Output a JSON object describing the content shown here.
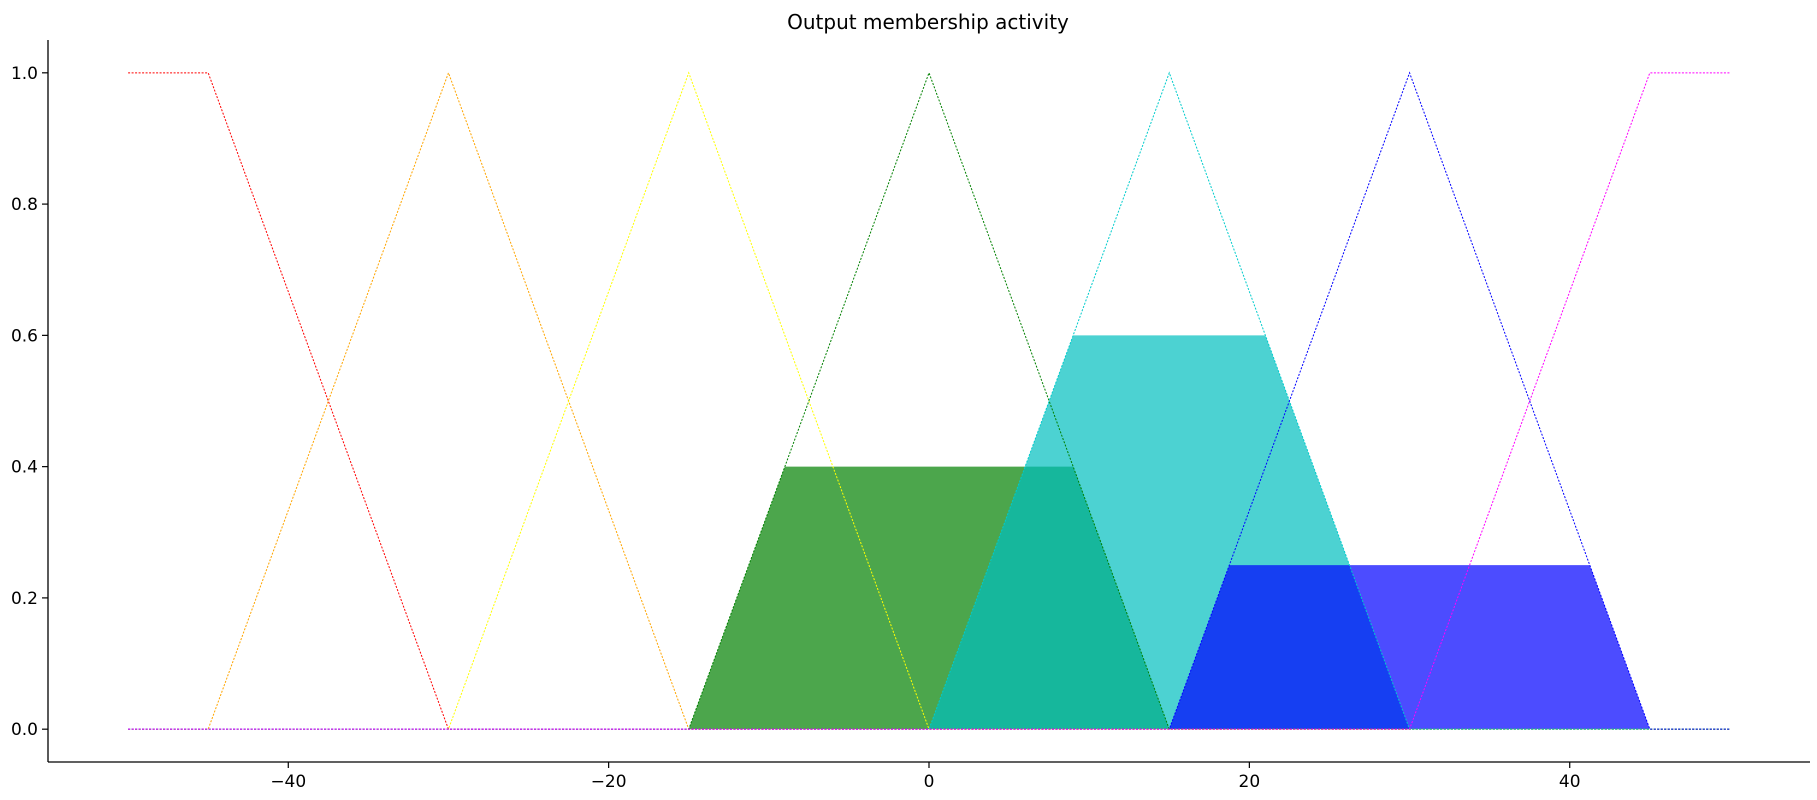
{
  "chart_data": {
    "type": "area",
    "title": "Output membership activity",
    "xlabel": "",
    "ylabel": "",
    "xlim": [
      -55,
      55
    ],
    "ylim": [
      -0.05,
      1.05
    ],
    "xticks": [
      -40,
      -20,
      0,
      20,
      40
    ],
    "xtick_labels": [
      "−40",
      "−20",
      "0",
      "20",
      "40"
    ],
    "yticks": [
      0.0,
      0.2,
      0.4,
      0.6,
      0.8,
      1.0
    ],
    "ytick_labels": [
      "0.0",
      "0.2",
      "0.4",
      "0.6",
      "0.8",
      "1.0"
    ],
    "grid": false,
    "membership_functions": [
      {
        "color": "#ff0000",
        "x": [
          -50,
          -45,
          -30,
          50
        ],
        "y": [
          1,
          1,
          0,
          0
        ]
      },
      {
        "color": "#ffa500",
        "x": [
          -50,
          -45,
          -30,
          -15,
          50
        ],
        "y": [
          0,
          0,
          1,
          0,
          0
        ]
      },
      {
        "color": "#ffff00",
        "x": [
          -50,
          -30,
          -15,
          0,
          50
        ],
        "y": [
          0,
          0,
          1,
          0,
          0
        ]
      },
      {
        "color": "#008000",
        "x": [
          -50,
          -15,
          0,
          15,
          50
        ],
        "y": [
          0,
          0,
          1,
          0,
          0
        ]
      },
      {
        "color": "#00cccc",
        "x": [
          -50,
          0,
          15,
          30,
          50
        ],
        "y": [
          0,
          0,
          1,
          0,
          0
        ]
      },
      {
        "color": "#0000ff",
        "x": [
          -50,
          15,
          30,
          45,
          50
        ],
        "y": [
          0,
          0,
          1,
          0,
          0
        ]
      },
      {
        "color": "#ff00ff",
        "x": [
          -50,
          30,
          45,
          50
        ],
        "y": [
          0,
          0,
          1,
          1
        ]
      }
    ],
    "activations": [
      {
        "color": "#008000",
        "opacity": 0.7,
        "x": [
          -15,
          -9,
          9,
          15
        ],
        "y": [
          0,
          0.4,
          0.4,
          0
        ]
      },
      {
        "color": "#00bfbf",
        "opacity": 0.7,
        "x": [
          0,
          9,
          21,
          30
        ],
        "y": [
          0,
          0.6,
          0.6,
          0
        ]
      },
      {
        "color": "#0000ff",
        "opacity": 0.7,
        "x": [
          15,
          18.75,
          41.25,
          45
        ],
        "y": [
          0,
          0.25,
          0.25,
          0
        ]
      }
    ]
  }
}
